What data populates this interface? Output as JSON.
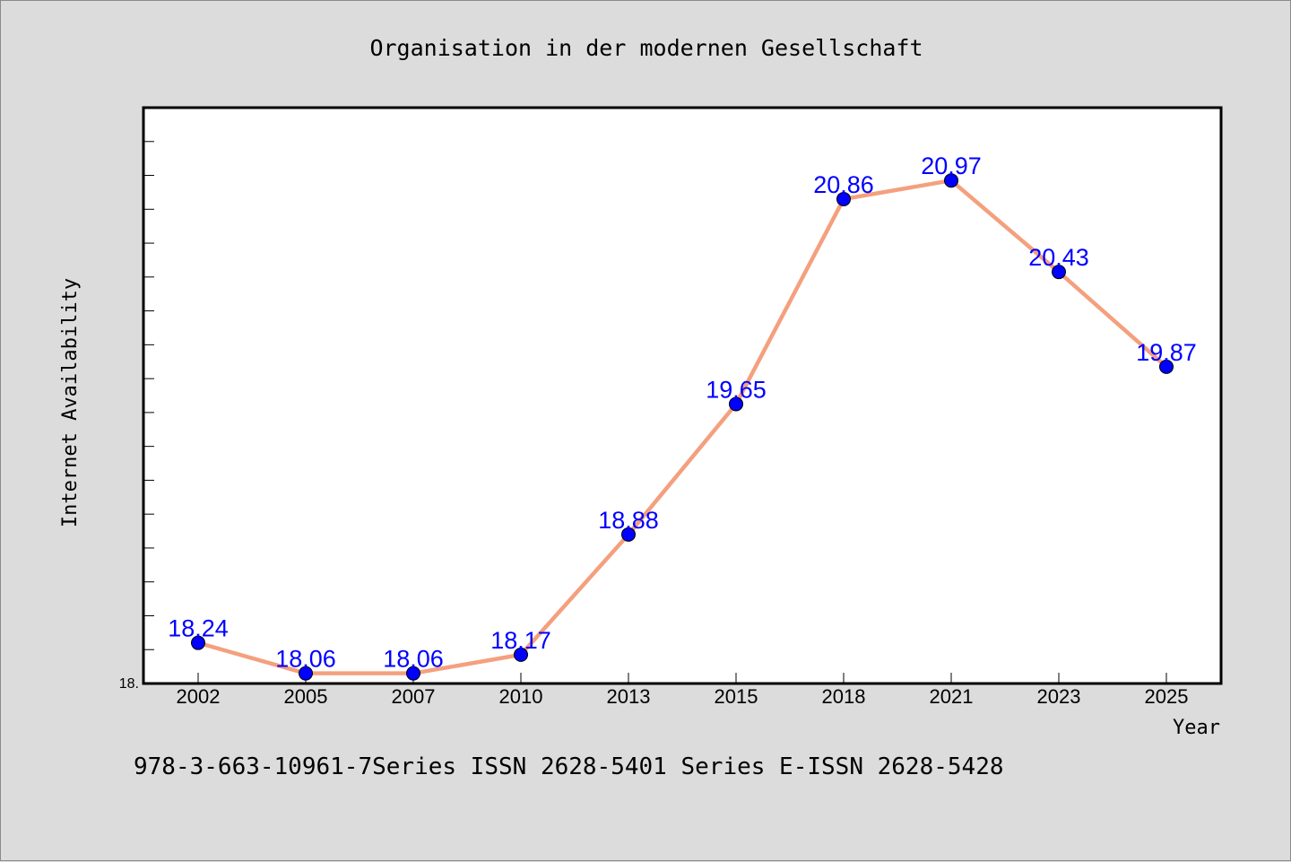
{
  "chart_data": {
    "type": "line",
    "title": "Organisation in der modernen Gesellschaft",
    "xlabel": "Year",
    "ylabel": "Internet Availability",
    "categories": [
      "2002",
      "2005",
      "2007",
      "2010",
      "2013",
      "2015",
      "2018",
      "2021",
      "2023",
      "2025"
    ],
    "series": [
      {
        "values": [
          18.24,
          18.06,
          18.06,
          18.17,
          18.88,
          19.65,
          20.86,
          20.97,
          20.43,
          19.87
        ],
        "data_labels": [
          "18.24",
          "18.06",
          "18.06",
          "18.17",
          "18.88",
          "19.65",
          "20.86",
          "20.97",
          "20.43",
          "19.87"
        ]
      }
    ],
    "ylim": [
      18.0,
      21.4
    ],
    "y_tick_label": "18.",
    "grid": false,
    "line_color": "#f4a07e",
    "marker_color": "#0000ff",
    "label_color": "#0000ff"
  },
  "footer": "978-3-663-10961-7Series ISSN 2628-5401 Series E-ISSN 2628-5428"
}
